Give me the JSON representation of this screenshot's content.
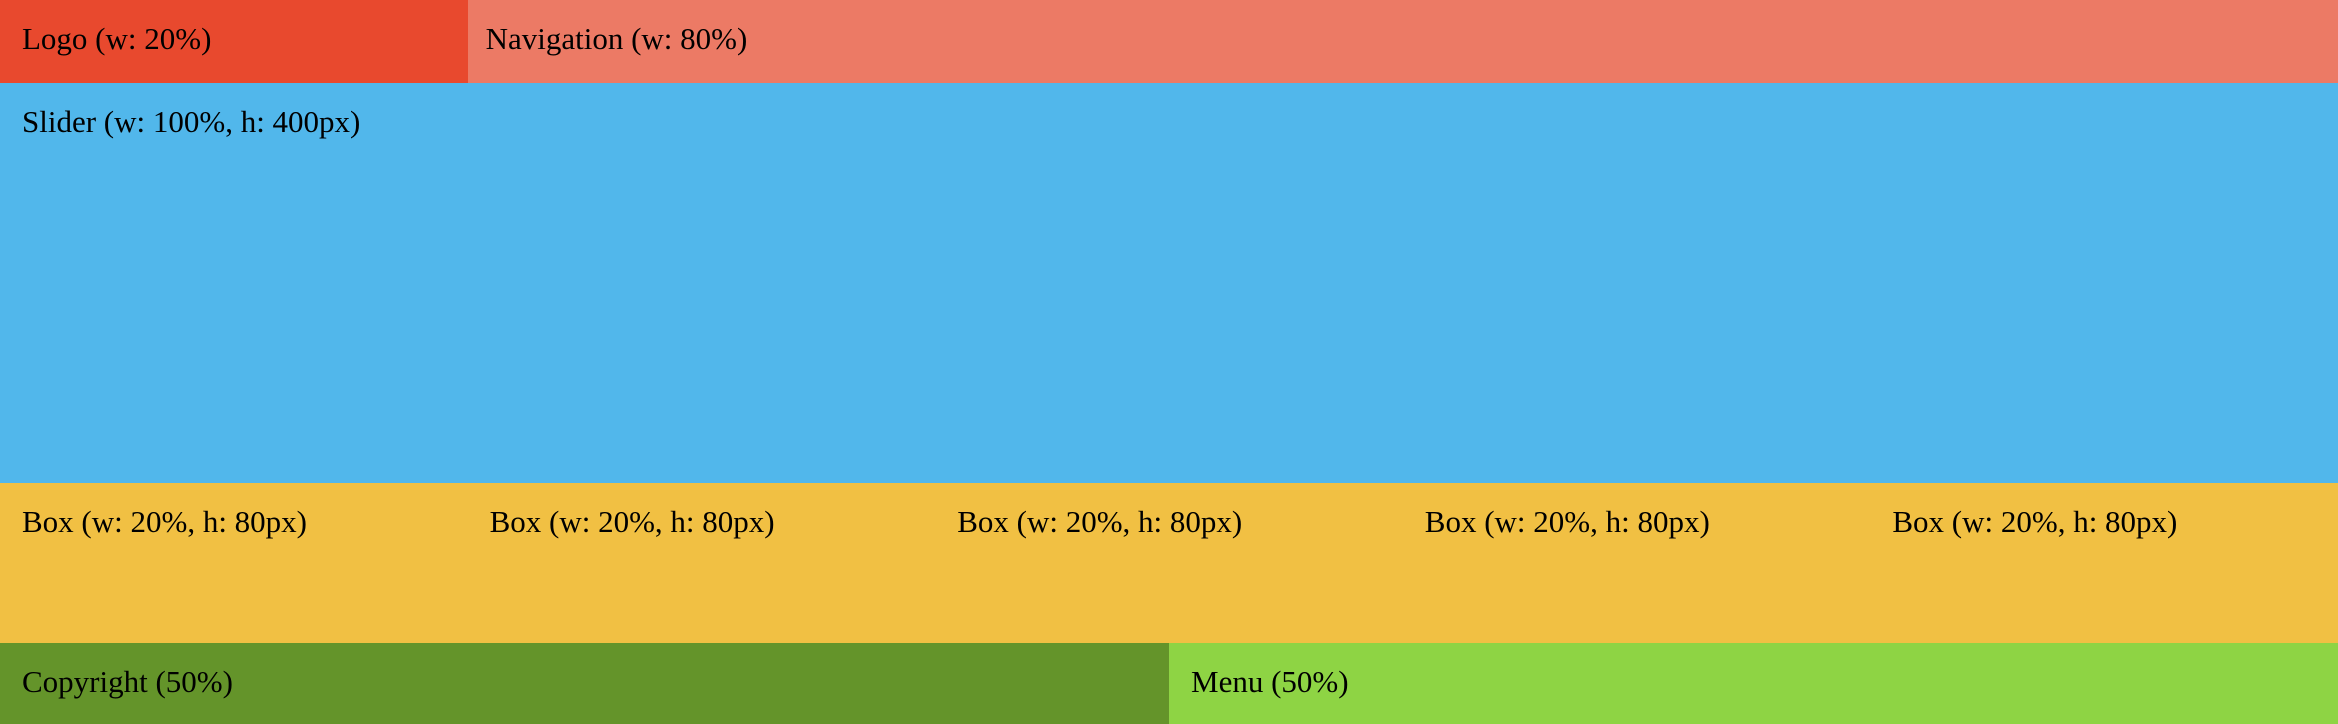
{
  "header": {
    "logo_label": "Logo (w: 20%)",
    "navigation_label": "Navigation (w: 80%)"
  },
  "slider": {
    "label": "Slider (w: 100%, h: 400px)"
  },
  "boxes": [
    {
      "label": "Box (w: 20%, h: 80px)"
    },
    {
      "label": "Box (w: 20%, h: 80px)"
    },
    {
      "label": "Box (w: 20%, h: 80px)"
    },
    {
      "label": "Box (w: 20%, h: 80px)"
    },
    {
      "label": "Box (w: 20%, h: 80px)"
    }
  ],
  "footer": {
    "copyright_label": "Copyright (50%)",
    "menu_label": "Menu (50%)"
  },
  "colors": {
    "logo": "#E8492E",
    "navigation": "#EC7A65",
    "slider": "#51B7EB",
    "boxes": "#F1C043",
    "copyright": "#64942A",
    "menu": "#8ED444"
  }
}
